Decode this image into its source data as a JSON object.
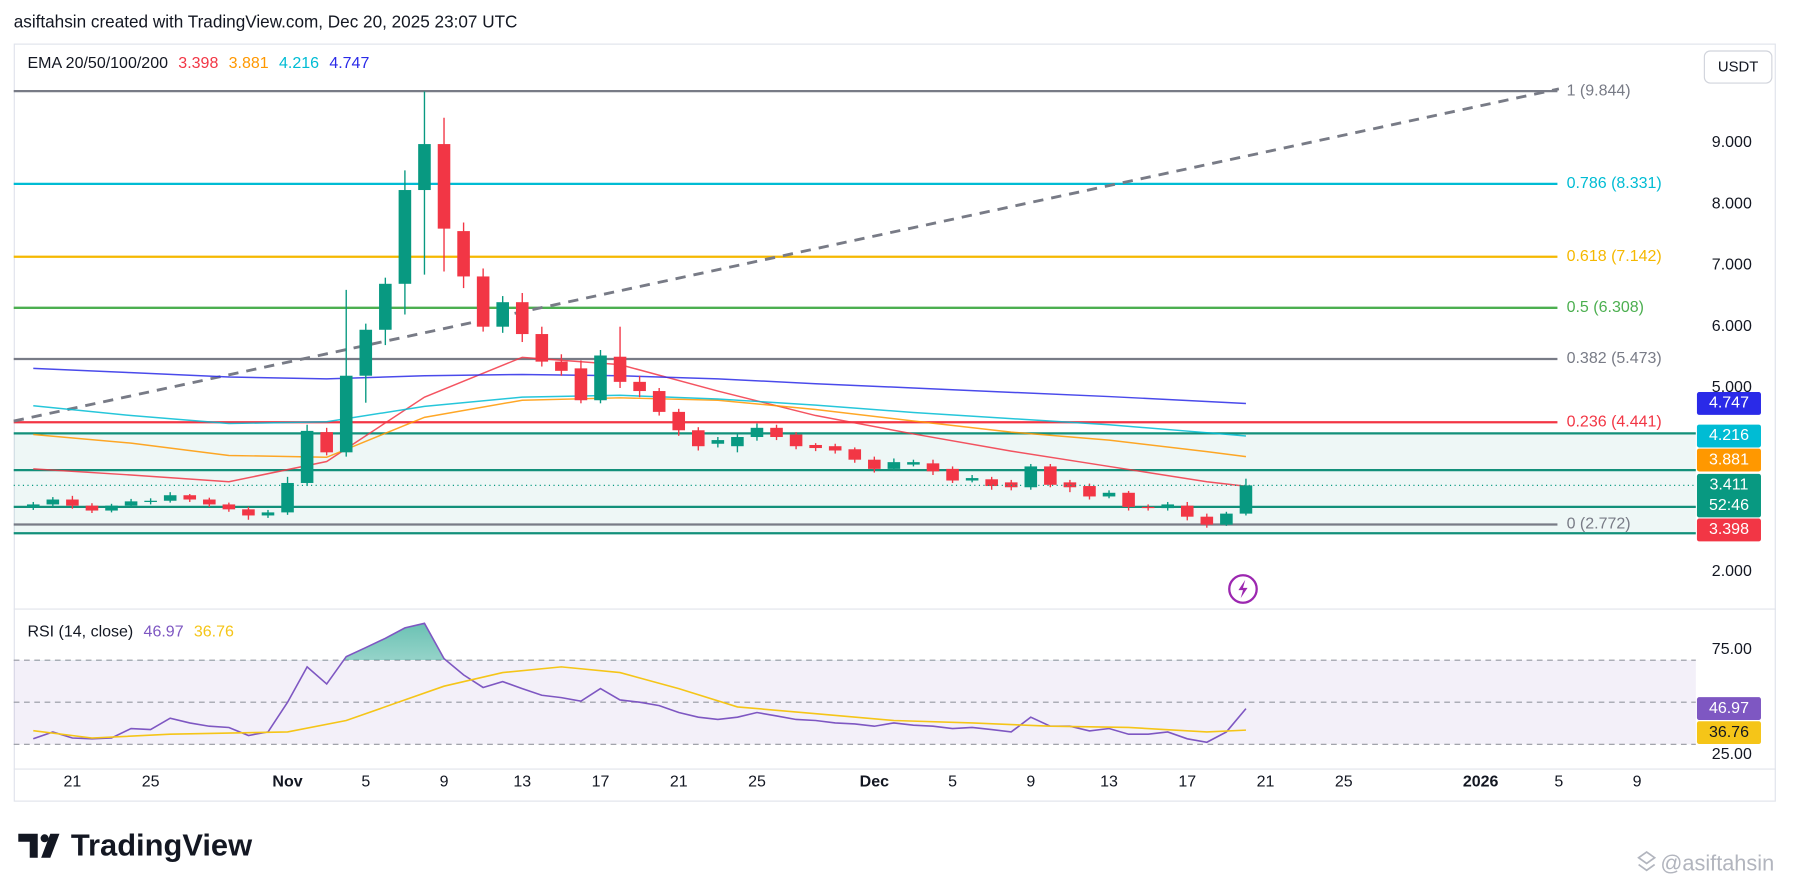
{
  "header": "asiftahsin created with TradingView.com, Dec 20, 2025 23:07 UTC",
  "currency": "USDT",
  "logo": "TradingView",
  "watermark": "@asiftahsin",
  "chart_data": [
    {
      "type": "candlestick",
      "title": "EMA 20/50/100/200",
      "countdown": "52:46",
      "up_color": "#089981",
      "down_color": "#f23645",
      "x": [
        "2025-10-19",
        "2025-10-20",
        "2025-10-21",
        "2025-10-22",
        "2025-10-23",
        "2025-10-24",
        "2025-10-25",
        "2025-10-26",
        "2025-10-27",
        "2025-10-28",
        "2025-10-29",
        "2025-10-30",
        "2025-10-31",
        "2025-11-01",
        "2025-11-02",
        "2025-11-03",
        "2025-11-04",
        "2025-11-05",
        "2025-11-06",
        "2025-11-07",
        "2025-11-08",
        "2025-11-09",
        "2025-11-10",
        "2025-11-11",
        "2025-11-12",
        "2025-11-13",
        "2025-11-14",
        "2025-11-15",
        "2025-11-16",
        "2025-11-17",
        "2025-11-18",
        "2025-11-19",
        "2025-11-20",
        "2025-11-21",
        "2025-11-22",
        "2025-11-23",
        "2025-11-24",
        "2025-11-25",
        "2025-11-26",
        "2025-11-27",
        "2025-11-28",
        "2025-11-29",
        "2025-11-30",
        "2025-12-01",
        "2025-12-02",
        "2025-12-03",
        "2025-12-04",
        "2025-12-05",
        "2025-12-06",
        "2025-12-07",
        "2025-12-08",
        "2025-12-09",
        "2025-12-10",
        "2025-12-11",
        "2025-12-12",
        "2025-12-13",
        "2025-12-14",
        "2025-12-15",
        "2025-12-16",
        "2025-12-17",
        "2025-12-18",
        "2025-12-19",
        "2025-12-20"
      ],
      "open": [
        3.05,
        3.1,
        3.18,
        3.08,
        3.0,
        3.08,
        3.14,
        3.16,
        3.25,
        3.18,
        3.1,
        3.02,
        2.92,
        2.97,
        3.45,
        4.28,
        3.95,
        5.2,
        5.95,
        6.7,
        8.23,
        8.98,
        7.56,
        6.82,
        6.0,
        6.4,
        5.88,
        5.43,
        5.32,
        4.8,
        5.51,
        5.1,
        4.95,
        4.61,
        4.31,
        4.09,
        4.05,
        4.2,
        4.35,
        4.24,
        4.07,
        4.05,
        4.0,
        3.83,
        3.68,
        3.75,
        3.77,
        3.68,
        3.49,
        3.51,
        3.46,
        3.38,
        3.72,
        3.46,
        3.4,
        3.23,
        3.29,
        3.06,
        3.04,
        3.08,
        2.9,
        2.77,
        2.95
      ],
      "high": [
        3.14,
        3.22,
        3.24,
        3.12,
        3.11,
        3.19,
        3.2,
        3.3,
        3.27,
        3.21,
        3.13,
        3.06,
        3.01,
        3.55,
        4.4,
        4.35,
        6.6,
        6.05,
        6.8,
        8.55,
        9.84,
        9.41,
        7.7,
        6.95,
        6.5,
        6.55,
        6.0,
        5.55,
        5.45,
        5.62,
        6.0,
        5.2,
        5.0,
        4.66,
        4.36,
        4.2,
        4.25,
        4.42,
        4.4,
        4.28,
        4.1,
        4.09,
        4.03,
        3.88,
        3.85,
        3.83,
        3.83,
        3.72,
        3.58,
        3.55,
        3.5,
        3.76,
        3.76,
        3.5,
        3.44,
        3.33,
        3.32,
        3.1,
        3.14,
        3.14,
        2.95,
        2.98,
        3.52
      ],
      "low": [
        3.01,
        3.06,
        3.03,
        2.96,
        2.97,
        3.05,
        3.1,
        3.13,
        3.14,
        3.06,
        2.98,
        2.85,
        2.88,
        2.93,
        3.4,
        3.9,
        3.88,
        4.76,
        5.7,
        6.2,
        6.85,
        6.9,
        6.63,
        5.92,
        5.9,
        5.75,
        5.35,
        5.2,
        4.75,
        4.75,
        5.0,
        4.85,
        4.55,
        4.22,
        3.98,
        4.03,
        3.95,
        4.14,
        4.15,
        4.0,
        3.97,
        3.93,
        3.78,
        3.62,
        3.65,
        3.72,
        3.58,
        3.45,
        3.46,
        3.34,
        3.33,
        3.34,
        3.38,
        3.3,
        3.18,
        3.2,
        3.0,
        3.0,
        3.0,
        2.84,
        2.72,
        2.75,
        2.92
      ],
      "close": [
        3.1,
        3.18,
        3.08,
        3.0,
        3.08,
        3.15,
        3.16,
        3.25,
        3.18,
        3.1,
        3.02,
        2.92,
        2.97,
        3.45,
        4.3,
        3.95,
        5.2,
        5.95,
        6.7,
        8.23,
        8.98,
        7.6,
        6.82,
        6.0,
        6.4,
        5.88,
        5.43,
        5.28,
        4.8,
        5.53,
        5.1,
        4.95,
        4.61,
        4.31,
        4.05,
        4.15,
        4.2,
        4.35,
        4.2,
        4.05,
        4.02,
        3.98,
        3.83,
        3.68,
        3.79,
        3.79,
        3.64,
        3.49,
        3.53,
        3.4,
        3.38,
        3.72,
        3.42,
        3.38,
        3.23,
        3.29,
        3.06,
        3.04,
        3.1,
        2.9,
        2.77,
        2.95,
        3.411
      ],
      "series": [
        {
          "color": "#f23645",
          "x": [
            "2025-10-19",
            "2025-10-24",
            "2025-10-29",
            "2025-11-03",
            "2025-11-08",
            "2025-11-13",
            "2025-11-18",
            "2025-11-23",
            "2025-11-28",
            "2025-12-03",
            "2025-12-08",
            "2025-12-13",
            "2025-12-18",
            "2025-12-20"
          ],
          "values": [
            3.68,
            3.58,
            3.47,
            3.8,
            4.85,
            5.5,
            5.38,
            4.95,
            4.55,
            4.25,
            3.97,
            3.72,
            3.47,
            3.398
          ]
        },
        {
          "color": "#ff9800",
          "x": [
            "2025-10-19",
            "2025-10-24",
            "2025-10-29",
            "2025-11-03",
            "2025-11-08",
            "2025-11-13",
            "2025-11-18",
            "2025-11-23",
            "2025-11-28",
            "2025-12-03",
            "2025-12-08",
            "2025-12-13",
            "2025-12-18",
            "2025-12-20"
          ],
          "values": [
            4.24,
            4.1,
            3.9,
            3.87,
            4.52,
            4.8,
            4.84,
            4.8,
            4.65,
            4.46,
            4.28,
            4.15,
            3.96,
            3.881
          ]
        },
        {
          "color": "#00bcd4",
          "x": [
            "2025-10-19",
            "2025-10-24",
            "2025-10-29",
            "2025-11-03",
            "2025-11-08",
            "2025-11-13",
            "2025-11-18",
            "2025-11-23",
            "2025-11-28",
            "2025-12-03",
            "2025-12-08",
            "2025-12-13",
            "2025-12-18",
            "2025-12-20"
          ],
          "values": [
            4.71,
            4.55,
            4.42,
            4.45,
            4.7,
            4.85,
            4.88,
            4.82,
            4.72,
            4.6,
            4.5,
            4.4,
            4.27,
            4.216
          ]
        },
        {
          "color": "#2a2ae8",
          "x": [
            "2025-10-19",
            "2025-10-24",
            "2025-10-29",
            "2025-11-03",
            "2025-11-08",
            "2025-11-13",
            "2025-11-18",
            "2025-11-23",
            "2025-11-28",
            "2025-12-03",
            "2025-12-08",
            "2025-12-13",
            "2025-12-18",
            "2025-12-20"
          ],
          "values": [
            5.32,
            5.25,
            5.18,
            5.15,
            5.2,
            5.22,
            5.2,
            5.15,
            5.07,
            5.0,
            4.93,
            4.86,
            4.78,
            4.747
          ]
        }
      ],
      "fib_levels": [
        {
          "value": 9.844,
          "label": "1 (9.844)",
          "color": "#787b86"
        },
        {
          "value": 8.331,
          "label": "0.786 (8.331)",
          "color": "#00bcd4"
        },
        {
          "value": 7.142,
          "label": "0.618 (7.142)",
          "color": "#f5b800"
        },
        {
          "value": 6.308,
          "label": "0.5 (6.308)",
          "color": "#4caf50"
        },
        {
          "value": 5.473,
          "label": "0.382 (5.473)",
          "color": "#787b86"
        },
        {
          "value": 4.441,
          "label": "0.236 (4.441)",
          "color": "#f23645"
        },
        {
          "value": 2.772,
          "label": "0 (2.772)",
          "color": "#787b86"
        }
      ],
      "hlines": {
        "color": "#12907a",
        "values": [
          4.26,
          3.66,
          3.06,
          2.63
        ]
      },
      "trendline": {
        "color": "#787b86",
        "x": [
          "2025-10-18",
          "2026-01-05"
        ],
        "values": [
          4.46,
          9.88
        ]
      },
      "xlim": [
        "2025-10-18",
        "2026-01-12"
      ],
      "ylim": [
        1.44,
        10.62
      ],
      "yticks": [
        {
          "value": 2,
          "label": "2.000"
        },
        {
          "value": 5,
          "label": "5.000"
        },
        {
          "value": 6,
          "label": "6.000"
        },
        {
          "value": 7,
          "label": "7.000"
        },
        {
          "value": 8,
          "label": "8.000"
        },
        {
          "value": 9,
          "label": "9.000"
        }
      ],
      "xticks": [
        {
          "value": "2025-10-21",
          "label": "21"
        },
        {
          "value": "2025-10-25",
          "label": "25"
        },
        {
          "value": "2025-11-01",
          "label": "Nov"
        },
        {
          "value": "2025-11-05",
          "label": "5"
        },
        {
          "value": "2025-11-09",
          "label": "9"
        },
        {
          "value": "2025-11-13",
          "label": "13"
        },
        {
          "value": "2025-11-17",
          "label": "17"
        },
        {
          "value": "2025-11-21",
          "label": "21"
        },
        {
          "value": "2025-11-25",
          "label": "25"
        },
        {
          "value": "2025-12-01",
          "label": "Dec"
        },
        {
          "value": "2025-12-05",
          "label": "5"
        },
        {
          "value": "2025-12-09",
          "label": "9"
        },
        {
          "value": "2025-12-13",
          "label": "13"
        },
        {
          "value": "2025-12-17",
          "label": "17"
        },
        {
          "value": "2025-12-21",
          "label": "21"
        },
        {
          "value": "2025-12-25",
          "label": "25"
        },
        {
          "value": "2026-01-01",
          "label": "2026"
        },
        {
          "value": "2026-01-05",
          "label": "5"
        },
        {
          "value": "2026-01-09",
          "label": "9"
        }
      ]
    },
    {
      "type": "line",
      "title": "RSI (14, close)",
      "series": [
        {
          "color": "#7e57c2",
          "values": [
            32.6,
            35.9,
            33,
            32.6,
            33,
            37.5,
            37,
            42.4,
            40.2,
            38.6,
            38,
            34.2,
            35.9,
            50,
            66.8,
            58.7,
            71.7,
            76,
            80.4,
            85.3,
            87.5,
            70.7,
            63,
            57,
            59.8,
            56.5,
            53.3,
            52.2,
            50.5,
            56.5,
            51.1,
            50,
            48.4,
            45.1,
            42.9,
            41.8,
            42.9,
            45.1,
            43.5,
            41.8,
            41.3,
            40.2,
            39.7,
            38.6,
            40.2,
            39.1,
            38.6,
            37.5,
            38,
            37,
            35.9,
            42.9,
            38.6,
            38.6,
            36.4,
            37.5,
            34.8,
            34.8,
            35.9,
            32.6,
            31,
            35.9,
            46.97
          ]
        },
        {
          "color": "#f5c518",
          "x": [
            "2025-10-19",
            "2025-10-22",
            "2025-10-26",
            "2025-11-01",
            "2025-11-04",
            "2025-11-07",
            "2025-11-09",
            "2025-11-12",
            "2025-11-15",
            "2025-11-18",
            "2025-11-21",
            "2025-11-24",
            "2025-11-28",
            "2025-12-02",
            "2025-12-06",
            "2025-12-10",
            "2025-12-14",
            "2025-12-18",
            "2025-12-20"
          ],
          "values": [
            36.5,
            33,
            34.8,
            35.9,
            41.3,
            51.1,
            57.6,
            64.1,
            66.8,
            64.1,
            56.5,
            47.8,
            44.6,
            41.3,
            40.2,
            38.6,
            38,
            35.9,
            36.76
          ]
        }
      ],
      "levels": [
        70,
        50,
        30
      ],
      "ylim": [
        18.5,
        91.3
      ],
      "yticks": [
        {
          "value": 75,
          "label": "75.00"
        },
        {
          "value": 25,
          "label": "25.00"
        }
      ]
    }
  ]
}
